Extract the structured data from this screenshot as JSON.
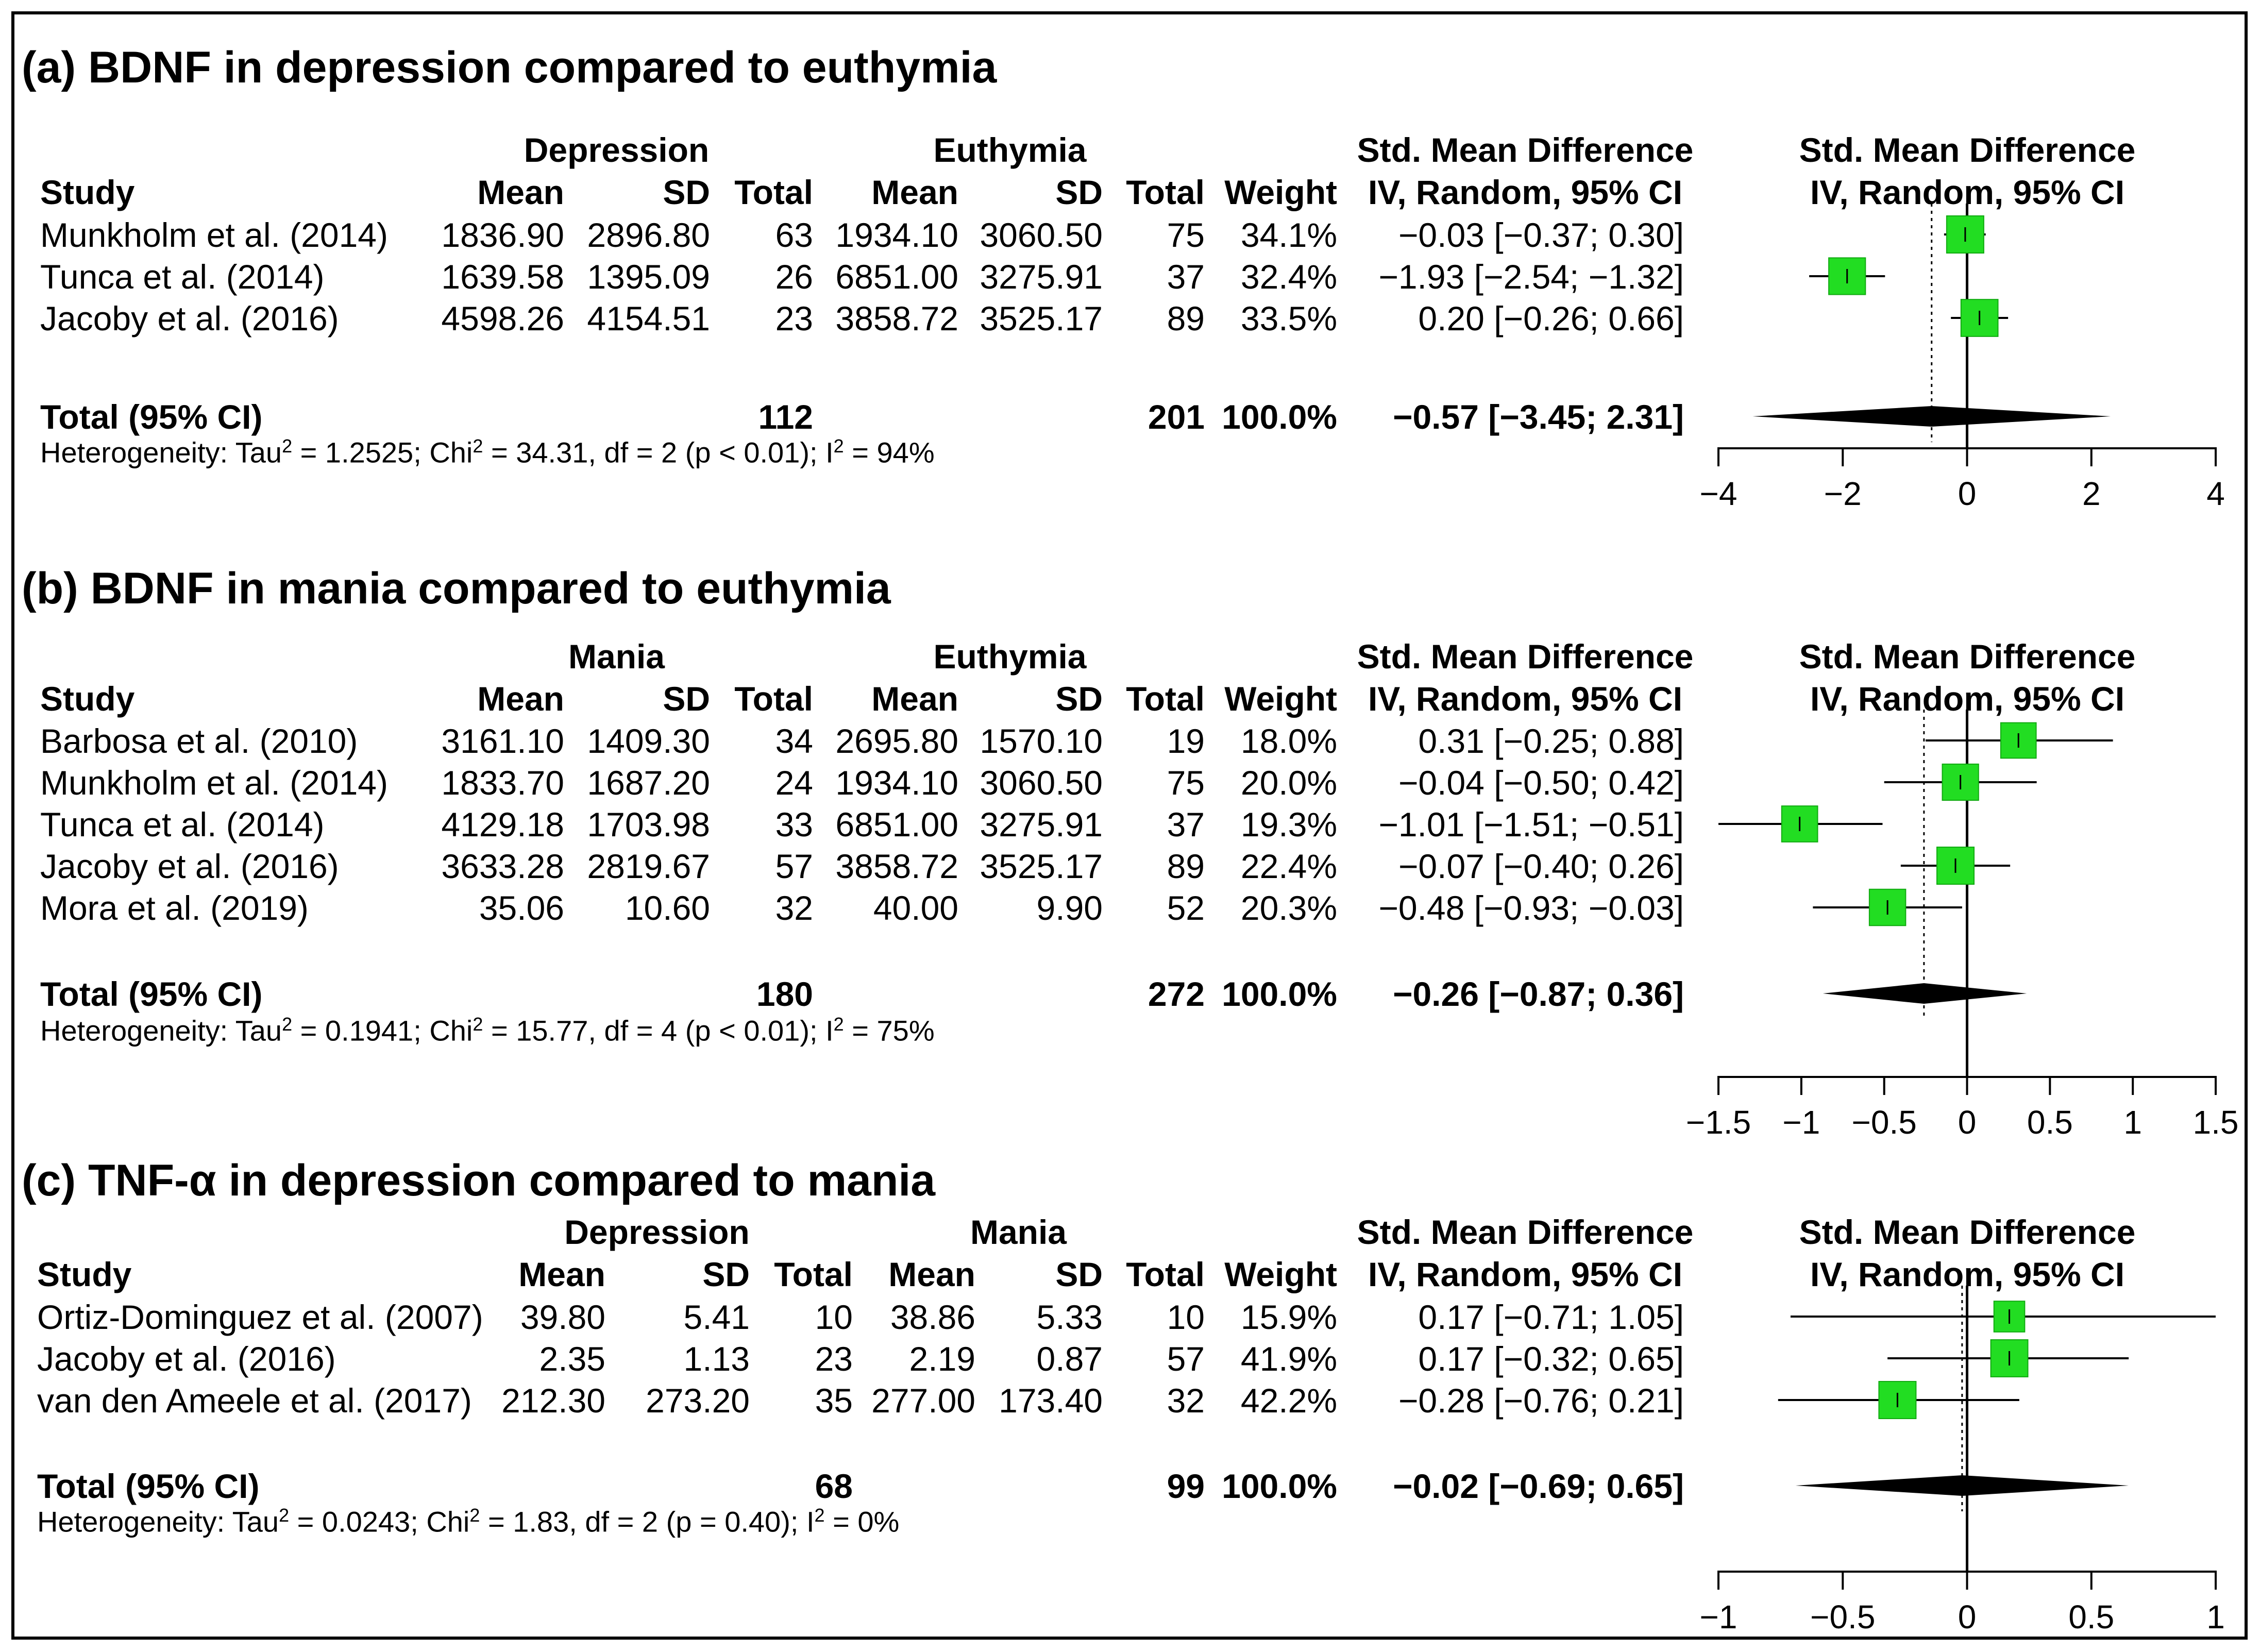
{
  "chart_data": [
    {
      "type": "forest",
      "title": "(a) BDNF in depression compared to euthymia",
      "group1": "Depression",
      "group2": "Euthymia",
      "headers": {
        "study": "Study",
        "mean": "Mean",
        "sd": "SD",
        "total": "Total",
        "weight": "Weight",
        "smd_line1": "Std. Mean Difference",
        "smd_line2": "IV, Random, 95% CI"
      },
      "studies": [
        {
          "name": "Munkholm et al. (2014)",
          "m1": "1836.90",
          "sd1": "2896.80",
          "n1": "63",
          "m2": "1934.10",
          "sd2": "3060.50",
          "n2": "75",
          "weight": "34.1%",
          "ci": "−0.03 [−0.37;  0.30]",
          "est": -0.03,
          "lo": -0.37,
          "hi": 0.3,
          "w": 34.1
        },
        {
          "name": "Tunca et al. (2014)",
          "m1": "1639.58",
          "sd1": "1395.09",
          "n1": "26",
          "m2": "6851.00",
          "sd2": "3275.91",
          "n2": "37",
          "weight": "32.4%",
          "ci": "−1.93 [−2.54; −1.32]",
          "est": -1.93,
          "lo": -2.54,
          "hi": -1.32,
          "w": 32.4
        },
        {
          "name": "Jacoby et al. (2016)",
          "m1": "4598.26",
          "sd1": "4154.51",
          "n1": "23",
          "m2": "3858.72",
          "sd2": "3525.17",
          "n2": "89",
          "weight": "33.5%",
          "ci": "0.20 [−0.26;  0.66]",
          "est": 0.2,
          "lo": -0.26,
          "hi": 0.66,
          "w": 33.5
        }
      ],
      "total": {
        "label": "Total (95% CI)",
        "n1": "112",
        "n2": "201",
        "weight": "100.0%",
        "ci": "−0.57 [−3.45;  2.31]",
        "est": -0.57,
        "lo": -3.45,
        "hi": 2.31
      },
      "het": {
        "pre": "Heterogeneity: Tau",
        "tau2": "1.2525",
        "chi2": "34.31",
        "df": "2",
        "p": "p < 0.01",
        "i2": "94%"
      },
      "xlim": [
        -4,
        4
      ],
      "ticks": [
        -4,
        -2,
        0,
        2,
        4
      ],
      "tick_labels": [
        "−4",
        "−2",
        "0",
        "2",
        "4"
      ],
      "colors": {
        "box": "#22dd22",
        "line": "#000000"
      }
    },
    {
      "type": "forest",
      "title": "(b) BDNF in mania compared to euthymia",
      "group1": "Mania",
      "group2": "Euthymia",
      "headers": {
        "study": "Study",
        "mean": "Mean",
        "sd": "SD",
        "total": "Total",
        "weight": "Weight",
        "smd_line1": "Std. Mean Difference",
        "smd_line2": "IV, Random, 95% CI"
      },
      "studies": [
        {
          "name": "Barbosa et al. (2010)",
          "m1": "3161.10",
          "sd1": "1409.30",
          "n1": "34",
          "m2": "2695.80",
          "sd2": "1570.10",
          "n2": "19",
          "weight": "18.0%",
          "ci": "0.31 [−0.25;  0.88]",
          "est": 0.31,
          "lo": -0.25,
          "hi": 0.88,
          "w": 18.0
        },
        {
          "name": "Munkholm et al. (2014)",
          "m1": "1833.70",
          "sd1": "1687.20",
          "n1": "24",
          "m2": "1934.10",
          "sd2": "3060.50",
          "n2": "75",
          "weight": "20.0%",
          "ci": "−0.04 [−0.50;  0.42]",
          "est": -0.04,
          "lo": -0.5,
          "hi": 0.42,
          "w": 20.0
        },
        {
          "name": "Tunca et al. (2014)",
          "m1": "4129.18",
          "sd1": "1703.98",
          "n1": "33",
          "m2": "6851.00",
          "sd2": "3275.91",
          "n2": "37",
          "weight": "19.3%",
          "ci": "−1.01 [−1.51; −0.51]",
          "est": -1.01,
          "lo": -1.51,
          "hi": -0.51,
          "w": 19.3
        },
        {
          "name": "Jacoby et al. (2016)",
          "m1": "3633.28",
          "sd1": "2819.67",
          "n1": "57",
          "m2": "3858.72",
          "sd2": "3525.17",
          "n2": "89",
          "weight": "22.4%",
          "ci": "−0.07 [−0.40;  0.26]",
          "est": -0.07,
          "lo": -0.4,
          "hi": 0.26,
          "w": 22.4
        },
        {
          "name": "Mora et al. (2019)",
          "m1": "35.06",
          "sd1": "10.60",
          "n1": "32",
          "m2": "40.00",
          "sd2": "9.90",
          "n2": "52",
          "weight": "20.3%",
          "ci": "−0.48 [−0.93; −0.03]",
          "est": -0.48,
          "lo": -0.93,
          "hi": -0.03,
          "w": 20.3
        }
      ],
      "total": {
        "label": "Total (95% CI)",
        "n1": "180",
        "n2": "272",
        "weight": "100.0%",
        "ci": "−0.26 [−0.87;  0.36]",
        "est": -0.26,
        "lo": -0.87,
        "hi": 0.36
      },
      "het": {
        "pre": "Heterogeneity: Tau",
        "tau2": "0.1941",
        "chi2": "15.77",
        "df": "4",
        "p": "p < 0.01",
        "i2": "75%"
      },
      "xlim": [
        -1.5,
        1.5
      ],
      "ticks": [
        -1.5,
        -1,
        -0.5,
        0,
        0.5,
        1,
        1.5
      ],
      "tick_labels": [
        "−1.5",
        "−1",
        "−0.5",
        "0",
        "0.5",
        "1",
        "1.5"
      ],
      "colors": {
        "box": "#22dd22",
        "line": "#000000"
      }
    },
    {
      "type": "forest",
      "title": "(c) TNF-α in depression compared to mania",
      "group1": "Depression",
      "group2": "Mania",
      "headers": {
        "study": "Study",
        "mean": "Mean",
        "sd": "SD",
        "total": "Total",
        "weight": "Weight",
        "smd_line1": "Std. Mean Difference",
        "smd_line2": "IV, Random, 95% CI"
      },
      "studies": [
        {
          "name": "Ortiz-Dominguez et al. (2007)",
          "m1": "39.80",
          "sd1": "5.41",
          "n1": "10",
          "m2": "38.86",
          "sd2": "5.33",
          "n2": "10",
          "weight": "15.9%",
          "ci": "0.17 [−0.71; 1.05]",
          "est": 0.17,
          "lo": -0.71,
          "hi": 1.05,
          "w": 15.9
        },
        {
          "name": "Jacoby et al. (2016)",
          "m1": "2.35",
          "sd1": "1.13",
          "n1": "23",
          "m2": "2.19",
          "sd2": "0.87",
          "n2": "57",
          "weight": "41.9%",
          "ci": "0.17 [−0.32; 0.65]",
          "est": 0.17,
          "lo": -0.32,
          "hi": 0.65,
          "w": 41.9
        },
        {
          "name": "van den Ameele et al. (2017)",
          "m1": "212.30",
          "sd1": "273.20",
          "n1": "35",
          "m2": "277.00",
          "sd2": "173.40",
          "n2": "32",
          "weight": "42.2%",
          "ci": "−0.28 [−0.76; 0.21]",
          "est": -0.28,
          "lo": -0.76,
          "hi": 0.21,
          "w": 42.2
        }
      ],
      "total": {
        "label": "Total (95% CI)",
        "n1": "68",
        "n2": "99",
        "weight": "100.0%",
        "ci": "−0.02 [−0.69; 0.65]",
        "est": -0.02,
        "lo": -0.69,
        "hi": 0.65
      },
      "het": {
        "pre": "Heterogeneity: Tau",
        "tau2": "0.0243",
        "chi2": "1.83",
        "df": "2",
        "p": "p = 0.40",
        "i2": "0%"
      },
      "xlim": [
        -1,
        1
      ],
      "ticks": [
        -1,
        -0.5,
        0,
        0.5,
        1
      ],
      "tick_labels": [
        "−1",
        "−0.5",
        "0",
        "0.5",
        "1"
      ],
      "colors": {
        "box": "#22dd22",
        "line": "#000000"
      }
    }
  ]
}
